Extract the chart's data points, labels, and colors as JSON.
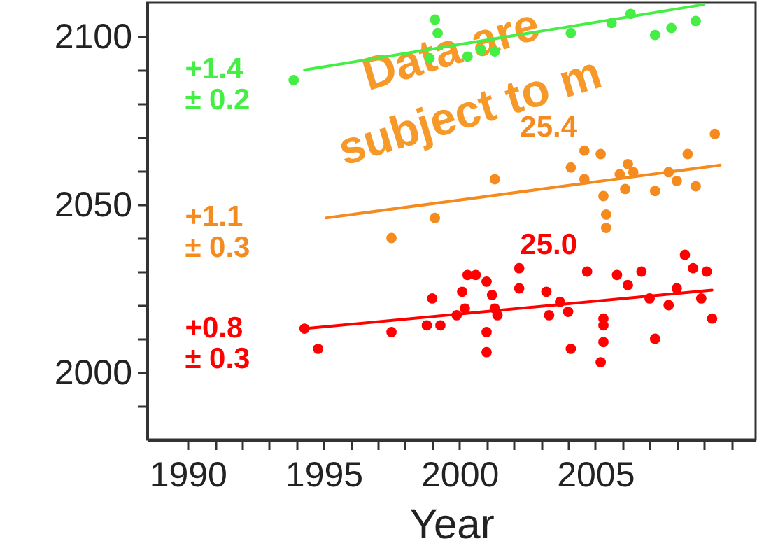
{
  "chart_data": {
    "type": "scatter",
    "xlabel": "Year",
    "xlim": [
      1988.5,
      2010.9
    ],
    "ylim": [
      1980,
      2110
    ],
    "xticks": [
      1990,
      {
        "value": 1991,
        "label": null
      },
      {
        "value": 1992,
        "label": null
      },
      {
        "value": 1993,
        "label": null
      },
      {
        "value": 1994,
        "label": null
      },
      1995,
      {
        "value": 1996,
        "label": null
      },
      {
        "value": 1997,
        "label": null
      },
      {
        "value": 1998,
        "label": null
      },
      {
        "value": 1999,
        "label": null
      },
      2000,
      {
        "value": 2001,
        "label": null
      },
      {
        "value": 2002,
        "label": null
      },
      {
        "value": 2003,
        "label": null
      },
      {
        "value": 2004,
        "label": null
      },
      2005,
      {
        "value": 2006,
        "label": null
      },
      {
        "value": 2007,
        "label": null
      },
      {
        "value": 2008,
        "label": null
      },
      {
        "value": 2009,
        "label": null
      },
      {
        "value": 2010,
        "label": null
      }
    ],
    "yticks": [
      {
        "value": 1990,
        "label": null
      },
      2000,
      {
        "value": 2010,
        "label": null
      },
      {
        "value": 2020,
        "label": null
      },
      {
        "value": 2030,
        "label": null
      },
      {
        "value": 2040,
        "label": null
      },
      2050,
      {
        "value": 2060,
        "label": null
      },
      {
        "value": 2070,
        "label": null
      },
      {
        "value": 2080,
        "label": null
      },
      {
        "value": 2090,
        "label": null
      },
      2100
    ],
    "grid": false,
    "series": [
      {
        "name": "+1.4 ± 0.2",
        "color": "#44ee44",
        "marker": "circle",
        "x": [
          1993.9,
          1998.9,
          1999.1,
          1999.2,
          2000.3,
          2000.8,
          2001.3,
          2004.1,
          2005.6,
          2006.3,
          2007.2,
          2007.8,
          2008.7
        ],
        "values": [
          2087,
          2093.5,
          2105,
          2101,
          2094,
          2096,
          2095.5,
          2101,
          2104,
          2106.7,
          2100.4,
          2102.5,
          2104.6
        ]
      },
      {
        "type": "line",
        "color": "#44ee44",
        "x": [
          1994.3,
          2009
        ],
        "values": [
          2090,
          2109.5
        ]
      },
      {
        "name": "+1.1 ± 0.3",
        "color": "#f58a1f",
        "marker": "circle",
        "x": [
          1997.5,
          1999.1,
          2001.3,
          2004.1,
          2004.6,
          2004.6,
          2005.2,
          2005.3,
          2005.4,
          2005.4,
          2005.9,
          2006.1,
          2006.2,
          2006.4,
          2007.2,
          2007.7,
          2008,
          2008.4,
          2008.7,
          2009.4
        ],
        "values": [
          2040,
          2046,
          2057.5,
          2061,
          2066,
          2057.5,
          2065,
          2052.5,
          2047,
          2043,
          2059,
          2054.6,
          2062,
          2059.6,
          2054,
          2059.6,
          2057,
          2065,
          2055.4,
          2071
        ]
      },
      {
        "type": "line",
        "color": "#f58a1f",
        "x": [
          1995.1,
          2009.6
        ],
        "values": [
          2046,
          2061.7
        ]
      },
      {
        "name": "+0.8 ± 0.3",
        "color": "#ff0000",
        "marker": "circle",
        "x": [
          1994.3,
          1994.8,
          1997.5,
          1998.8,
          1999.3,
          1999,
          1999.9,
          2000.1,
          2000.3,
          2000.2,
          2000.6,
          2001,
          2001.2,
          2001.3,
          2001.4,
          2001,
          2001,
          2002.2,
          2002.2,
          2003.2,
          2003.3,
          2003.7,
          2004,
          2004.1,
          2004.7,
          2005.3,
          2005.3,
          2005.3,
          2005.2,
          2005.8,
          2006.2,
          2006.7,
          2007,
          2007.2,
          2007.7,
          2008,
          2008.3,
          2008.6,
          2009.1,
          2008.9,
          2009.3
        ],
        "values": [
          2013,
          2007,
          2012,
          2014,
          2014,
          2022,
          2017,
          2024,
          2029,
          2019,
          2029,
          2027,
          2023,
          2019,
          2017,
          2012,
          2006,
          2031,
          2025,
          2024,
          2017,
          2021,
          2018,
          2007,
          2030,
          2016,
          2014,
          2009,
          2003,
          2029,
          2026,
          2030,
          2022,
          2010,
          2020,
          2025,
          2035,
          2031,
          2030,
          2022,
          2016
        ]
      },
      {
        "type": "line",
        "color": "#ff0000",
        "x": [
          1994.3,
          2009.3
        ],
        "values": [
          2013,
          2024.5
        ]
      }
    ],
    "annotations": [
      "25.4",
      "25.0",
      "Data are subject to m"
    ]
  }
}
